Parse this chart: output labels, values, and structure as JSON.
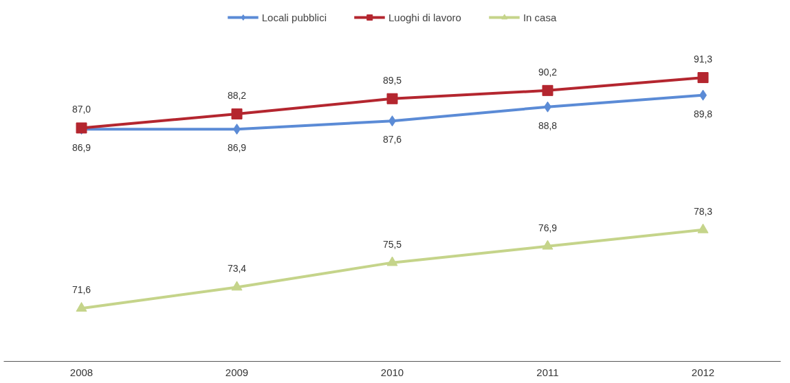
{
  "chart_data": {
    "type": "line",
    "categories": [
      "2008",
      "2009",
      "2010",
      "2011",
      "2012"
    ],
    "series": [
      {
        "name": "Locali pubblici",
        "color": "#5b8bd6",
        "marker": "diamond",
        "values": [
          86.9,
          86.9,
          87.6,
          88.8,
          89.8
        ],
        "value_labels": [
          "86,9",
          "86,9",
          "87,6",
          "88,8",
          "89,8"
        ]
      },
      {
        "name": "Luoghi di lavoro",
        "color": "#b4262f",
        "marker": "square",
        "values": [
          87.0,
          88.2,
          89.5,
          90.2,
          91.3
        ],
        "value_labels": [
          "87,0",
          "88,2",
          "89,5",
          "90,2",
          "91,3"
        ]
      },
      {
        "name": "In casa",
        "color": "#c5d48a",
        "marker": "triangle",
        "values": [
          71.6,
          73.4,
          75.5,
          76.9,
          78.3
        ],
        "value_labels": [
          "71,6",
          "73,4",
          "75,5",
          "76,9",
          "78,3"
        ]
      }
    ],
    "legend": "top",
    "line_style": "solid"
  }
}
